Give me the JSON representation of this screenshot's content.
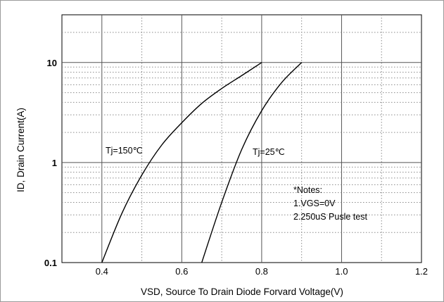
{
  "chart_data": {
    "type": "line",
    "title": "",
    "xlabel": "VSD, Source To Drain Diode Forvard Voltage(V)",
    "ylabel": "ID, Drain Current(A)",
    "xlim": [
      0.3,
      1.2
    ],
    "ylim": [
      0.1,
      30
    ],
    "yscale": "log",
    "grid": true,
    "x_ticks": [
      0.4,
      0.6,
      0.8,
      1.0,
      1.2
    ],
    "x_tick_labels": [
      "0.4",
      "0.6",
      "0.8",
      "1.0",
      "1.2"
    ],
    "y_ticks": [
      0.1,
      1,
      10
    ],
    "y_tick_labels": [
      "0.1",
      "1",
      "10"
    ],
    "series": [
      {
        "name": "Tj=150℃",
        "x": [
          0.4,
          0.45,
          0.5,
          0.55,
          0.6,
          0.65,
          0.7,
          0.75,
          0.8
        ],
        "y": [
          0.1,
          0.31,
          0.75,
          1.5,
          2.5,
          3.9,
          5.5,
          7.4,
          10
        ]
      },
      {
        "name": "Tj=25℃",
        "x": [
          0.65,
          0.7,
          0.75,
          0.8,
          0.85,
          0.9
        ],
        "y": [
          0.1,
          0.4,
          1.35,
          3.3,
          6.3,
          10
        ]
      }
    ],
    "annotations": {
      "label_150": "Tj=150℃",
      "label_25": "Tj=25℃",
      "notes": [
        "*Notes:",
        "1.VGS=0V",
        "2.250uS Pusle test"
      ]
    }
  }
}
